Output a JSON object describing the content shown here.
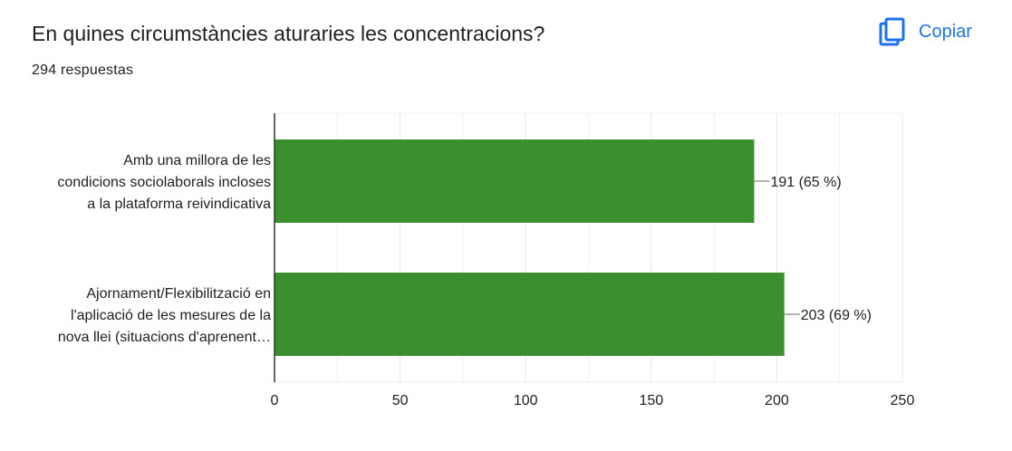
{
  "header": {
    "title": "En quines circumstàncies aturaries les concentracions?",
    "responses": "294 respuestas",
    "copy_label": "Copiar",
    "copy_icon": "copy-icon"
  },
  "colors": {
    "bar": "#3b8f2f",
    "accent": "#1a73e8",
    "grid": "#e8e8e8",
    "axis": "#333333"
  },
  "chart_data": {
    "type": "bar",
    "orientation": "horizontal",
    "categories": [
      [
        "Amb una millora de les",
        "condicions sociolaborals incloses",
        "a la plataforma reivindicativa"
      ],
      [
        "Ajornament/Flexibilització en",
        "l'aplicació de les mesures de la",
        "nova llei (situacions d'aprenent…"
      ]
    ],
    "values": [
      191,
      203
    ],
    "data_labels": [
      "191 (65 %)",
      "203 (69 %)"
    ],
    "xlim": [
      0,
      250
    ],
    "xticks": [
      0,
      50,
      100,
      150,
      200,
      250
    ],
    "grid": true
  }
}
